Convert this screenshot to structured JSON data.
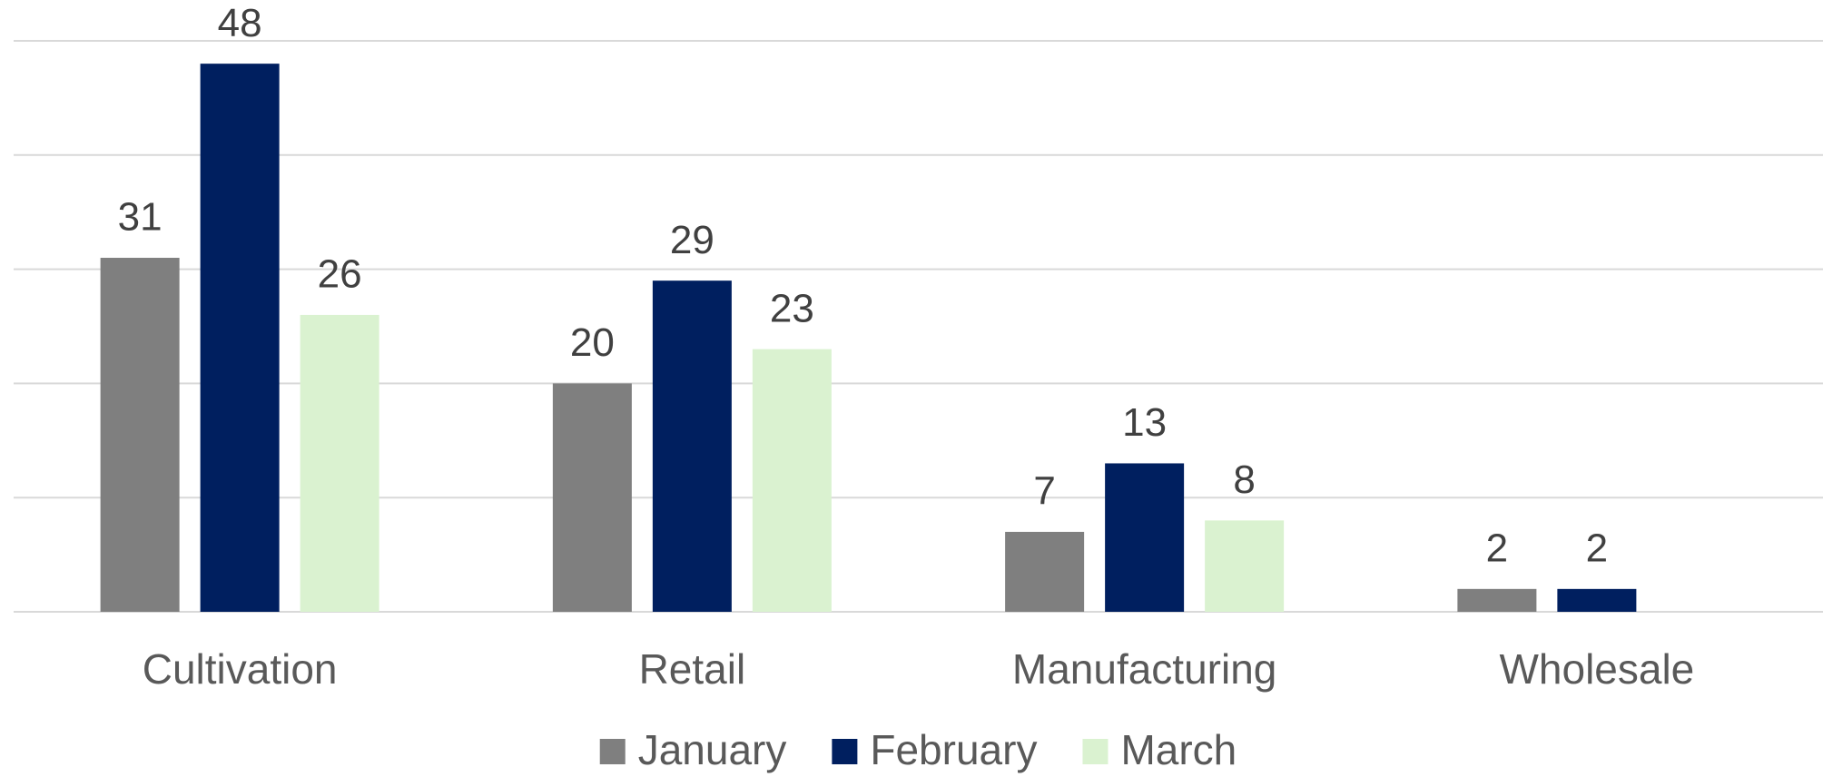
{
  "chart_data": {
    "type": "bar",
    "categories": [
      "Cultivation",
      "Retail",
      "Manufacturing",
      "Wholesale"
    ],
    "series": [
      {
        "name": "January",
        "color": "#7f7f7f",
        "values": [
          31,
          20,
          7,
          2
        ]
      },
      {
        "name": "February",
        "color": "#001f5f",
        "values": [
          48,
          29,
          13,
          2
        ]
      },
      {
        "name": "March",
        "color": "#daf2d0",
        "values": [
          26,
          23,
          8,
          null
        ]
      }
    ],
    "ylim": [
      0,
      50
    ],
    "yticks": [
      0,
      10,
      20,
      30,
      40,
      50
    ],
    "grid": true,
    "legend": "bottom"
  }
}
